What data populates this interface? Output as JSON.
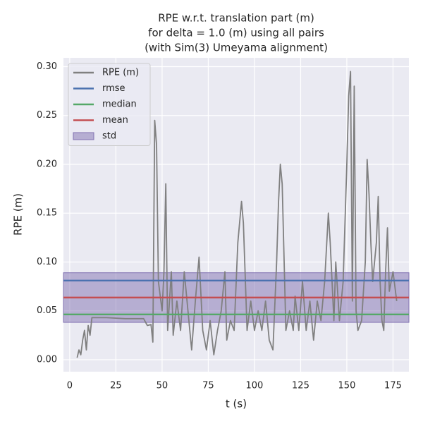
{
  "chart_data": {
    "type": "line",
    "title": [
      "RPE w.r.t. translation part (m)",
      "for delta = 1.0 (m) using all pairs",
      "(with Sim(3) Umeyama alignment)"
    ],
    "xlabel": "t (s)",
    "ylabel": "RPE (m)",
    "xlim": [
      -3.4,
      183.6
    ],
    "ylim": [
      -0.0123,
      0.309
    ],
    "xticks": [
      0,
      25,
      50,
      75,
      100,
      125,
      150,
      175
    ],
    "yticks": [
      {
        "value": 0,
        "label": "0.00"
      },
      0.05,
      {
        "value": 0.1,
        "label": "0.10"
      },
      0.15,
      {
        "value": 0.2,
        "label": "0.20"
      },
      0.25,
      {
        "value": 0.3,
        "label": "0.30"
      }
    ],
    "grid": true,
    "legend": "upper left",
    "series": [
      {
        "name": "RPE (m)",
        "color": "#808080",
        "x": [
          4,
          5,
          6,
          7,
          8,
          9,
          10,
          11,
          12,
          20,
          30,
          40,
          42,
          44,
          45,
          46,
          47,
          48,
          50,
          51,
          52,
          53,
          55,
          56,
          58,
          60,
          62,
          64,
          66,
          68,
          70,
          72,
          74,
          76,
          78,
          80,
          82,
          84,
          85,
          87,
          89,
          91,
          93,
          94,
          96,
          98,
          100,
          102,
          104,
          106,
          108,
          110,
          112,
          113,
          114,
          115,
          117,
          119,
          121,
          122,
          124,
          126,
          128,
          130,
          132,
          134,
          136,
          138,
          140,
          141,
          143,
          144,
          146,
          148,
          150,
          151,
          152,
          153,
          154,
          155,
          156,
          158,
          160,
          161,
          162,
          163,
          164,
          166,
          167,
          168,
          169,
          170,
          171,
          172,
          173,
          175,
          177
        ],
        "values": [
          0.002,
          0.01,
          0.005,
          0.02,
          0.03,
          0.01,
          0.035,
          0.025,
          0.043,
          0.043,
          0.042,
          0.042,
          0.035,
          0.036,
          0.018,
          0.245,
          0.22,
          0.08,
          0.05,
          0.09,
          0.18,
          0.03,
          0.09,
          0.025,
          0.06,
          0.03,
          0.09,
          0.05,
          0.01,
          0.06,
          0.105,
          0.03,
          0.01,
          0.04,
          0.005,
          0.03,
          0.05,
          0.09,
          0.02,
          0.04,
          0.03,
          0.12,
          0.162,
          0.14,
          0.03,
          0.06,
          0.03,
          0.05,
          0.03,
          0.06,
          0.02,
          0.01,
          0.1,
          0.16,
          0.2,
          0.18,
          0.03,
          0.05,
          0.03,
          0.065,
          0.03,
          0.08,
          0.03,
          0.06,
          0.02,
          0.06,
          0.04,
          0.08,
          0.15,
          0.12,
          0.04,
          0.1,
          0.04,
          0.08,
          0.2,
          0.27,
          0.295,
          0.06,
          0.28,
          0.05,
          0.03,
          0.04,
          0.1,
          0.205,
          0.17,
          0.12,
          0.08,
          0.12,
          0.167,
          0.08,
          0.04,
          0.03,
          0.09,
          0.135,
          0.07,
          0.09,
          0.06
        ]
      }
    ],
    "hlines": [
      {
        "name": "rmse",
        "color": "#4c72b0",
        "value": 0.081
      },
      {
        "name": "median",
        "color": "#55a868",
        "value": 0.0463
      },
      {
        "name": "mean",
        "color": "#c44e52",
        "value": 0.0636
      }
    ],
    "band": {
      "name": "std",
      "color": "#8172b2",
      "value": 0.0254
    }
  }
}
